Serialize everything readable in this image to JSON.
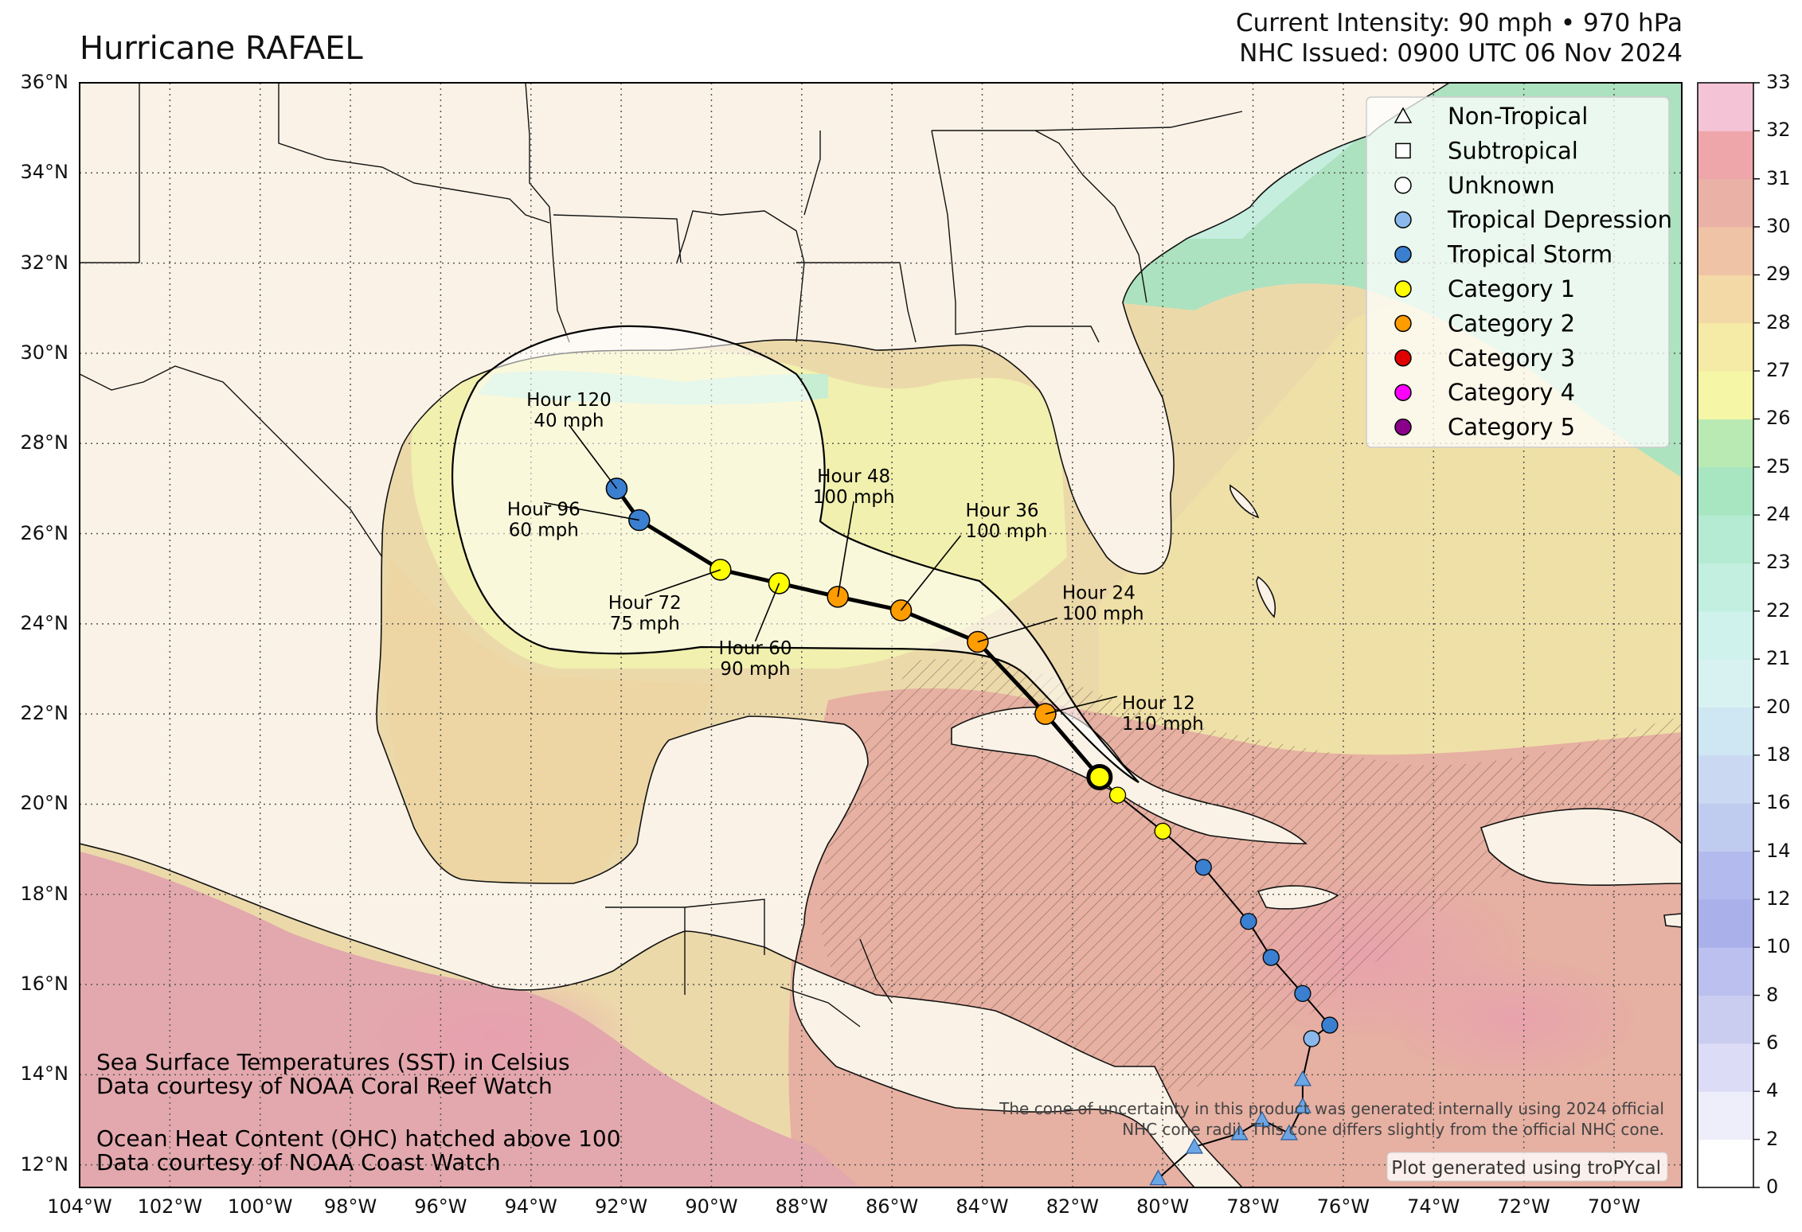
{
  "header": {
    "title": "Hurricane RAFAEL",
    "intensity": "Current Intensity: 90 mph • 970 hPa",
    "issued": "NHC Issued: 0900 UTC 06 Nov 2024"
  },
  "axes": {
    "lat_labels": [
      "36°N",
      "34°N",
      "32°N",
      "30°N",
      "28°N",
      "26°N",
      "24°N",
      "22°N",
      "20°N",
      "18°N",
      "16°N",
      "14°N",
      "12°N"
    ],
    "lon_labels": [
      "104°W",
      "102°W",
      "100°W",
      "98°W",
      "96°W",
      "94°W",
      "92°W",
      "90°W",
      "88°W",
      "86°W",
      "84°W",
      "82°W",
      "80°W",
      "78°W",
      "76°W",
      "74°W",
      "72°W",
      "70°W"
    ],
    "lat_range": [
      11.5,
      36.0
    ],
    "lon_range": [
      -104.0,
      -68.5
    ]
  },
  "colorbar": {
    "ticks": [
      "0",
      "2",
      "4",
      "6",
      "8",
      "10",
      "12",
      "14",
      "16",
      "18",
      "20",
      "21",
      "22",
      "23",
      "24",
      "25",
      "26",
      "27",
      "28",
      "29",
      "30",
      "31",
      "32",
      "33"
    ],
    "colors": [
      "#ffffff",
      "#eeeefa",
      "#dcdcf6",
      "#cbcdf0",
      "#bcc0ee",
      "#aab0ea",
      "#b3bbee",
      "#c0cbf0",
      "#cad8f2",
      "#cfe6f3",
      "#d8f2f2",
      "#cff2ec",
      "#c2efe0",
      "#b4ebd2",
      "#a8e6c2",
      "#baeab4",
      "#f6f7a6",
      "#f6eba6",
      "#f3d9a6",
      "#efc4a6",
      "#eab2a6",
      "#eea6aa",
      "#f4c4d6"
    ]
  },
  "legend": {
    "items": [
      {
        "label": "Non-Tropical",
        "marker": "triangle",
        "color": "#ffffff"
      },
      {
        "label": "Subtropical",
        "marker": "square",
        "color": "#ffffff"
      },
      {
        "label": "Unknown",
        "marker": "circle",
        "color": "#ffffff"
      },
      {
        "label": "Tropical Depression",
        "marker": "circle",
        "color": "#8ab8ea"
      },
      {
        "label": "Tropical Storm",
        "marker": "circle",
        "color": "#3a7fd0"
      },
      {
        "label": "Category 1",
        "marker": "circle",
        "color": "#ffff00"
      },
      {
        "label": "Category 2",
        "marker": "circle",
        "color": "#ff9c00"
      },
      {
        "label": "Category 3",
        "marker": "circle",
        "color": "#e00000"
      },
      {
        "label": "Category 4",
        "marker": "circle",
        "color": "#ff00ff"
      },
      {
        "label": "Category 5",
        "marker": "circle",
        "color": "#8b008b"
      }
    ]
  },
  "past_track": [
    {
      "lon": -80.1,
      "lat": 11.7,
      "type": "Non-Tropical"
    },
    {
      "lon": -79.3,
      "lat": 12.4,
      "type": "Non-Tropical"
    },
    {
      "lon": -78.3,
      "lat": 12.7,
      "type": "Non-Tropical"
    },
    {
      "lon": -77.8,
      "lat": 13.0,
      "type": "Non-Tropical"
    },
    {
      "lon": -77.2,
      "lat": 12.7,
      "type": "Non-Tropical"
    },
    {
      "lon": -76.9,
      "lat": 13.3,
      "type": "Non-Tropical"
    },
    {
      "lon": -76.9,
      "lat": 13.9,
      "type": "Non-Tropical"
    },
    {
      "lon": -76.7,
      "lat": 14.8,
      "type": "Tropical Depression"
    },
    {
      "lon": -76.3,
      "lat": 15.1,
      "type": "Tropical Storm"
    },
    {
      "lon": -76.9,
      "lat": 15.8,
      "type": "Tropical Storm"
    },
    {
      "lon": -77.6,
      "lat": 16.6,
      "type": "Tropical Storm"
    },
    {
      "lon": -78.1,
      "lat": 17.4,
      "type": "Tropical Storm"
    },
    {
      "lon": -79.1,
      "lat": 18.6,
      "type": "Tropical Storm"
    },
    {
      "lon": -80.0,
      "lat": 19.4,
      "type": "Category 1"
    },
    {
      "lon": -81.0,
      "lat": 20.2,
      "type": "Category 1"
    }
  ],
  "forecast": [
    {
      "hour": "Hour 0",
      "wind": "",
      "lon": -81.4,
      "lat": 20.6,
      "type": "Category 1",
      "label": false
    },
    {
      "hour": "Hour 12",
      "wind": "110 mph",
      "lon": -82.6,
      "lat": 22.0,
      "type": "Category 2",
      "label": true
    },
    {
      "hour": "Hour 24",
      "wind": "100 mph",
      "lon": -84.1,
      "lat": 23.6,
      "type": "Category 2",
      "label": true
    },
    {
      "hour": "Hour 36",
      "wind": "100 mph",
      "lon": -85.8,
      "lat": 24.3,
      "type": "Category 2",
      "label": true
    },
    {
      "hour": "Hour 48",
      "wind": "100 mph",
      "lon": -87.2,
      "lat": 24.6,
      "type": "Category 2",
      "label": true
    },
    {
      "hour": "Hour 60",
      "wind": "90 mph",
      "lon": -88.5,
      "lat": 24.9,
      "type": "Category 1",
      "label": true
    },
    {
      "hour": "Hour 72",
      "wind": "75 mph",
      "lon": -89.8,
      "lat": 25.2,
      "type": "Category 1",
      "label": true
    },
    {
      "hour": "Hour 96",
      "wind": "60 mph",
      "lon": -91.6,
      "lat": 26.3,
      "type": "Tropical Storm",
      "label": true
    },
    {
      "hour": "Hour 120",
      "wind": "40 mph",
      "lon": -92.1,
      "lat": 27.0,
      "type": "Tropical Storm",
      "label": true
    }
  ],
  "notes": {
    "sst_line1": "Sea Surface Temperatures (SST) in Celsius",
    "sst_line2": "Data courtesy of NOAA Coral Reef Watch",
    "ohc_line1": "Ocean Heat Content (OHC) hatched above 100",
    "ohc_line2": "Data courtesy of NOAA Coast Watch",
    "cone_line1": "The cone of uncertainty in this product was generated internally using 2024 official",
    "cone_line2": "NHC cone radii. This cone differs slightly from the official NHC cone.",
    "credit": "Plot generated using troPYcal"
  }
}
